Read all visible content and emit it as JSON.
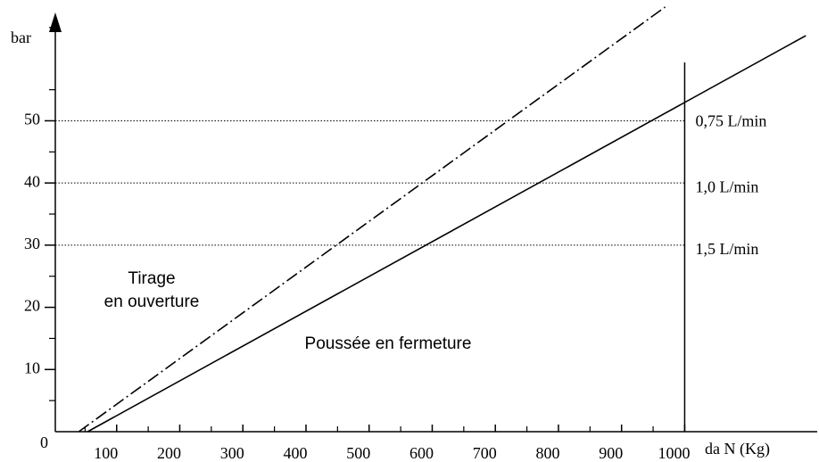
{
  "chart_data": {
    "type": "line",
    "y_label": "bar",
    "x_label": "da  N (Kg)",
    "origin_label": "0",
    "xlim": [
      0,
      1210
    ],
    "ylim": [
      0,
      69
    ],
    "xticks": [
      100,
      200,
      300,
      400,
      500,
      600,
      700,
      800,
      900,
      1000
    ],
    "yticks": [
      10,
      20,
      30,
      40,
      50
    ],
    "xticks_minor": [
      50,
      150,
      250,
      350,
      450,
      550,
      650,
      750,
      850,
      950
    ],
    "yticks_minor": [
      5,
      15,
      25,
      35,
      45,
      55,
      65
    ],
    "hlines": [
      {
        "value": 50,
        "label": "0,75 L/min"
      },
      {
        "value": 40,
        "label": "1,0 L/min"
      },
      {
        "value": 30,
        "label": "1,5 L/min"
      }
    ],
    "vline": 1000,
    "series": [
      {
        "name": "Tirage en ouverture",
        "style": "dashdot",
        "color": "#000000",
        "x": [
          40,
          969
        ],
        "values": [
          0,
          68.3
        ]
      },
      {
        "name": "Poussée en fermeture",
        "style": "solid",
        "color": "#000000",
        "x": [
          54,
          1192
        ],
        "values": [
          0,
          63.7
        ]
      }
    ],
    "annotations": [
      "Tirage",
      "en ouverture",
      "Poussée en fermeture"
    ]
  }
}
